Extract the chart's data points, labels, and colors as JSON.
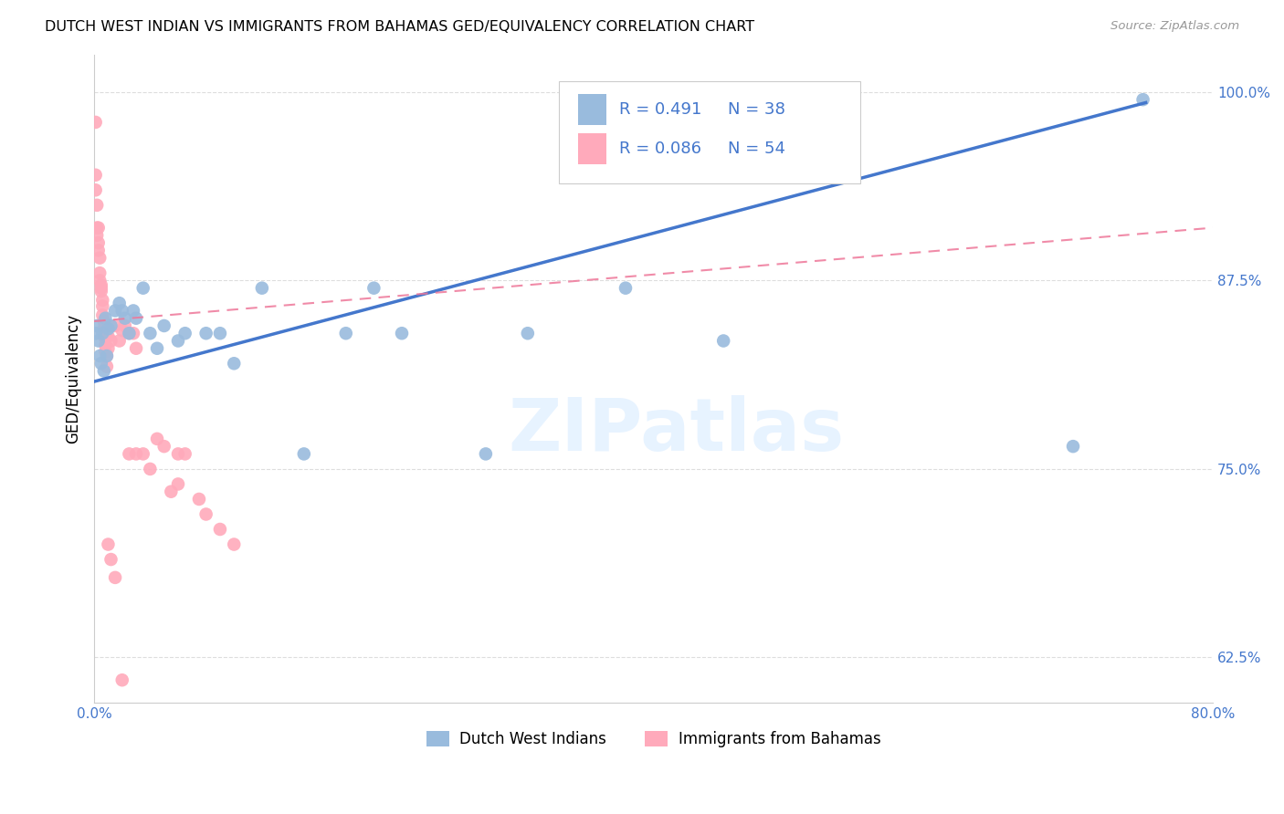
{
  "title": "DUTCH WEST INDIAN VS IMMIGRANTS FROM BAHAMAS GED/EQUIVALENCY CORRELATION CHART",
  "source": "Source: ZipAtlas.com",
  "ylabel": "GED/Equivalency",
  "xlim": [
    0.0,
    0.8
  ],
  "ylim": [
    0.595,
    1.025
  ],
  "yticks": [
    0.625,
    0.75,
    0.875,
    1.0
  ],
  "yticklabels": [
    "62.5%",
    "75.0%",
    "87.5%",
    "100.0%"
  ],
  "xtick_positions": [
    0.0,
    0.1,
    0.2,
    0.3,
    0.4,
    0.5,
    0.6,
    0.7,
    0.8
  ],
  "xtick_labels": [
    "0.0%",
    "",
    "",
    "",
    "",
    "",
    "",
    "",
    "80.0%"
  ],
  "watermark": "ZIPatlas",
  "color_blue": "#99BBDD",
  "color_pink": "#FFAABB",
  "color_blue_line": "#4477CC",
  "color_pink_line": "#EE7799",
  "color_blue_text": "#4477CC",
  "legend1_label": "Dutch West Indians",
  "legend2_label": "Immigrants from Bahamas",
  "blue_x": [
    0.001,
    0.002,
    0.003,
    0.004,
    0.005,
    0.006,
    0.007,
    0.008,
    0.009,
    0.01,
    0.012,
    0.015,
    0.018,
    0.02,
    0.022,
    0.025,
    0.028,
    0.03,
    0.035,
    0.04,
    0.045,
    0.05,
    0.06,
    0.065,
    0.08,
    0.09,
    0.1,
    0.12,
    0.15,
    0.18,
    0.2,
    0.22,
    0.28,
    0.31,
    0.38,
    0.45,
    0.7,
    0.75
  ],
  "blue_y": [
    0.84,
    0.845,
    0.835,
    0.825,
    0.82,
    0.84,
    0.815,
    0.85,
    0.825,
    0.843,
    0.845,
    0.855,
    0.86,
    0.855,
    0.85,
    0.84,
    0.855,
    0.85,
    0.87,
    0.84,
    0.83,
    0.845,
    0.835,
    0.84,
    0.84,
    0.84,
    0.82,
    0.87,
    0.76,
    0.84,
    0.87,
    0.84,
    0.76,
    0.84,
    0.87,
    0.835,
    0.765,
    0.995
  ],
  "pink_x": [
    0.001,
    0.001,
    0.001,
    0.002,
    0.002,
    0.002,
    0.003,
    0.003,
    0.003,
    0.004,
    0.004,
    0.004,
    0.005,
    0.005,
    0.005,
    0.006,
    0.006,
    0.006,
    0.007,
    0.007,
    0.007,
    0.008,
    0.008,
    0.008,
    0.009,
    0.009,
    0.01,
    0.01,
    0.012,
    0.015,
    0.018,
    0.02,
    0.022,
    0.025,
    0.025,
    0.028,
    0.03,
    0.03,
    0.035,
    0.04,
    0.045,
    0.05,
    0.055,
    0.06,
    0.06,
    0.065,
    0.075,
    0.08,
    0.09,
    0.1,
    0.01,
    0.012,
    0.015,
    0.02
  ],
  "pink_y": [
    0.98,
    0.945,
    0.935,
    0.925,
    0.91,
    0.905,
    0.91,
    0.9,
    0.895,
    0.89,
    0.88,
    0.875,
    0.872,
    0.87,
    0.868,
    0.862,
    0.858,
    0.852,
    0.848,
    0.843,
    0.838,
    0.838,
    0.832,
    0.828,
    0.825,
    0.818,
    0.838,
    0.83,
    0.835,
    0.845,
    0.835,
    0.842,
    0.845,
    0.84,
    0.76,
    0.84,
    0.83,
    0.76,
    0.76,
    0.75,
    0.77,
    0.765,
    0.735,
    0.74,
    0.76,
    0.76,
    0.73,
    0.72,
    0.71,
    0.7,
    0.7,
    0.69,
    0.678,
    0.61
  ],
  "blue_line_x": [
    0.0,
    0.752
  ],
  "blue_line_y": [
    0.808,
    0.993
  ],
  "pink_line_x": [
    0.0,
    0.8
  ],
  "pink_line_y": [
    0.848,
    0.91
  ]
}
